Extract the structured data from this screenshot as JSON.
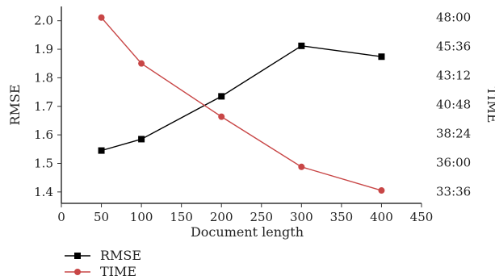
{
  "chart_data": {
    "type": "line",
    "xlabel": "Document length",
    "ylabel_left": "RMSE",
    "ylabel_right": "TIME",
    "x_ticks": [
      0,
      50,
      100,
      150,
      200,
      250,
      300,
      350,
      400,
      450
    ],
    "x_ticks_labels": [
      "0",
      "50",
      "100",
      "150",
      "200",
      "250",
      "300",
      "350",
      "400",
      "450"
    ],
    "left_ticks": [
      1.4,
      1.5,
      1.6,
      1.7,
      1.8,
      1.9,
      2.0
    ],
    "left_tick_labels": [
      "1.4",
      "1.5",
      "1.6",
      "1.7",
      "1.8",
      "1.9",
      "2.0"
    ],
    "right_ticks_minutes": [
      2016,
      2160,
      2304,
      2448,
      2592,
      2736,
      2880
    ],
    "right_tick_labels": [
      "33:36",
      "36:00",
      "38:24",
      "40:48",
      "43:12",
      "45:36",
      "48:00"
    ],
    "xlim": [
      0,
      450
    ],
    "ylim_left": [
      1.36,
      2.05
    ],
    "ylim_right_minutes": [
      1958,
      2935
    ],
    "grid": false,
    "legend_position": "bottom-left",
    "series": [
      {
        "name": "RMSE",
        "axis": "left",
        "color": "#000000",
        "marker": "square",
        "x": [
          50,
          100,
          200,
          300,
          400
        ],
        "y": [
          1.545,
          1.585,
          1.735,
          1.912,
          1.874
        ]
      },
      {
        "name": "TIME",
        "axis": "right",
        "color": "#c84646",
        "marker": "circle",
        "x": [
          50,
          100,
          200,
          300,
          400
        ],
        "y_minutes": [
          2880,
          2652,
          2388,
          2139,
          2022
        ],
        "y_labels_approx": [
          "48:00",
          "44:12",
          "39:48",
          "35:39",
          "33:42"
        ]
      }
    ]
  }
}
